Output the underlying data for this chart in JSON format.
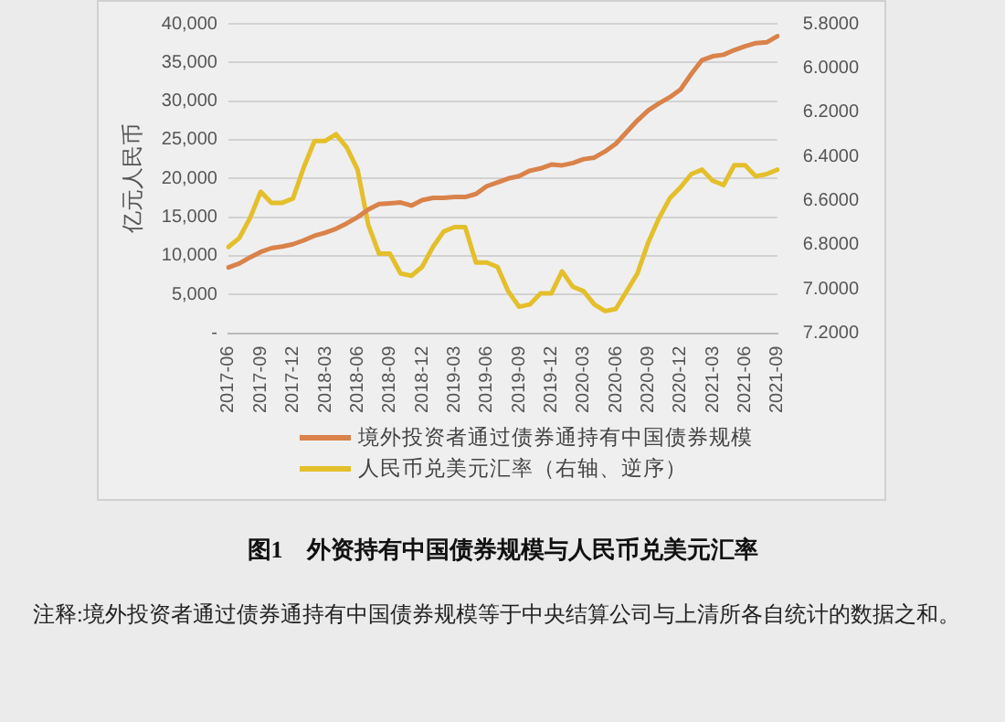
{
  "chart_data": {
    "type": "line",
    "title": "图1　外资持有中国债券规模与人民币兑美元汇率",
    "ylabel": "亿元人民币",
    "annotations": [
      "注释:境外投资者通过债券通持有中国债券规模等于中央结算公司与上清所各自统计的数据之和。"
    ],
    "categories": [
      "2017-06",
      null,
      null,
      "2017-09",
      null,
      null,
      "2017-12",
      null,
      null,
      "2018-03",
      null,
      null,
      "2018-06",
      null,
      null,
      "2018-09",
      null,
      null,
      "2018-12",
      null,
      null,
      "2019-03",
      null,
      null,
      "2019-06",
      null,
      null,
      "2019-09",
      null,
      null,
      "2019-12",
      null,
      null,
      "2020-03",
      null,
      null,
      "2020-06",
      null,
      null,
      "2020-09",
      null,
      null,
      "2020-12",
      null,
      null,
      "2021-03",
      null,
      null,
      "2021-06",
      null,
      null,
      "2021-09"
    ],
    "series": [
      {
        "name": "境外投资者通过债券通持有中国债券规模",
        "color": "#d9824a",
        "values": [
          8500,
          9000,
          9800,
          10500,
          11000,
          11200,
          11500,
          12000,
          12600,
          13000,
          13500,
          14200,
          15000,
          16000,
          16700,
          16800,
          16900,
          16500,
          17200,
          17500,
          17500,
          17600,
          17600,
          18000,
          19000,
          19500,
          20000,
          20300,
          21000,
          21300,
          21800,
          21700,
          22000,
          22500,
          22700,
          23500,
          24500,
          26000,
          27500,
          28800,
          29700,
          30500,
          31500,
          33500,
          35300,
          35800,
          36000,
          36600,
          37100,
          37500,
          37600,
          38400
        ]
      },
      {
        "name": "人民币兑美元汇率（右轴、逆序）",
        "color": "#e3bf2b",
        "axis": "y2",
        "values": [
          6.81,
          6.77,
          6.68,
          6.56,
          6.61,
          6.61,
          6.59,
          6.45,
          6.33,
          6.33,
          6.3,
          6.36,
          6.46,
          6.71,
          6.84,
          6.84,
          6.93,
          6.94,
          6.9,
          6.81,
          6.74,
          6.72,
          6.72,
          6.88,
          6.88,
          6.9,
          7.01,
          7.08,
          7.07,
          7.02,
          7.02,
          6.92,
          6.99,
          7.01,
          7.07,
          7.1,
          7.09,
          7.01,
          6.93,
          6.79,
          6.68,
          6.59,
          6.54,
          6.48,
          6.46,
          6.51,
          6.53,
          6.44,
          6.44,
          6.49,
          6.48,
          6.46
        ]
      }
    ],
    "ylim": [
      0,
      40000
    ],
    "yticks": [
      {
        "value": 0,
        "label": "-"
      },
      {
        "value": 5000,
        "label": "5,000"
      },
      {
        "value": 10000,
        "label": "10,000"
      },
      {
        "value": 15000,
        "label": "15,000"
      },
      {
        "value": 20000,
        "label": "20,000"
      },
      {
        "value": 25000,
        "label": "25,000"
      },
      {
        "value": 30000,
        "label": "30,000"
      },
      {
        "value": 35000,
        "label": "35,000"
      },
      {
        "value": 40000,
        "label": "40,000"
      }
    ],
    "y2lim": [
      7.2,
      5.8
    ],
    "y2ticks": [
      {
        "value": 5.8,
        "label": "5.8000"
      },
      {
        "value": 6.0,
        "label": "6.0000"
      },
      {
        "value": 6.2,
        "label": "6.2000"
      },
      {
        "value": 6.4,
        "label": "6.4000"
      },
      {
        "value": 6.6,
        "label": "6.6000"
      },
      {
        "value": 6.8,
        "label": "6.8000"
      },
      {
        "value": 7.0,
        "label": "7.0000"
      },
      {
        "value": 7.2,
        "label": "7.2000"
      }
    ],
    "grid": "y",
    "legend": "bottom",
    "marker": "none",
    "line_style": "solid"
  }
}
